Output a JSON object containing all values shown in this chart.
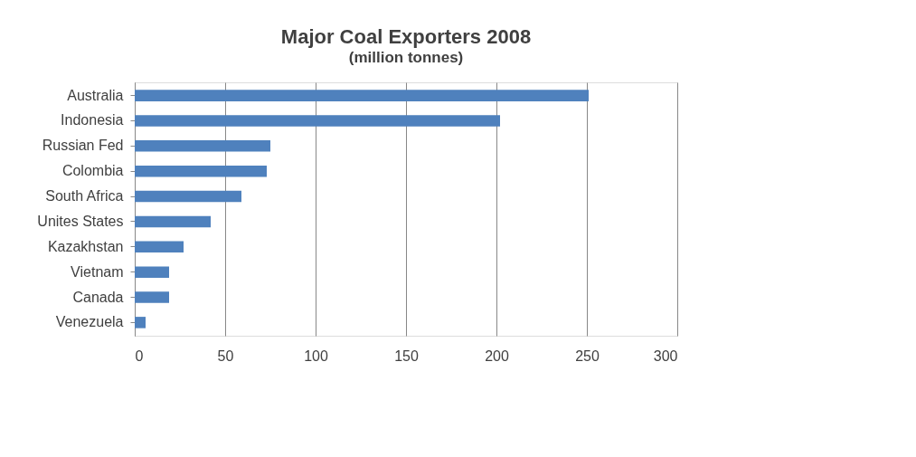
{
  "chart_data": {
    "type": "bar",
    "orientation": "horizontal",
    "title": "Major Coal Exporters 2008",
    "subtitle": "(million tonnes)",
    "categories": [
      "Australia",
      "Indonesia",
      "Russian Fed",
      "Colombia",
      "South Africa",
      "Unites States",
      "Kazakhstan",
      "Vietnam",
      "Canada",
      "Venezuela"
    ],
    "values": [
      251,
      202,
      75,
      73,
      59,
      42,
      27,
      19,
      19,
      6
    ],
    "color": "#4f81bd",
    "xlim": [
      0,
      300
    ],
    "xticks": [
      0,
      50,
      100,
      150,
      200,
      250,
      300
    ],
    "grid": "x"
  }
}
